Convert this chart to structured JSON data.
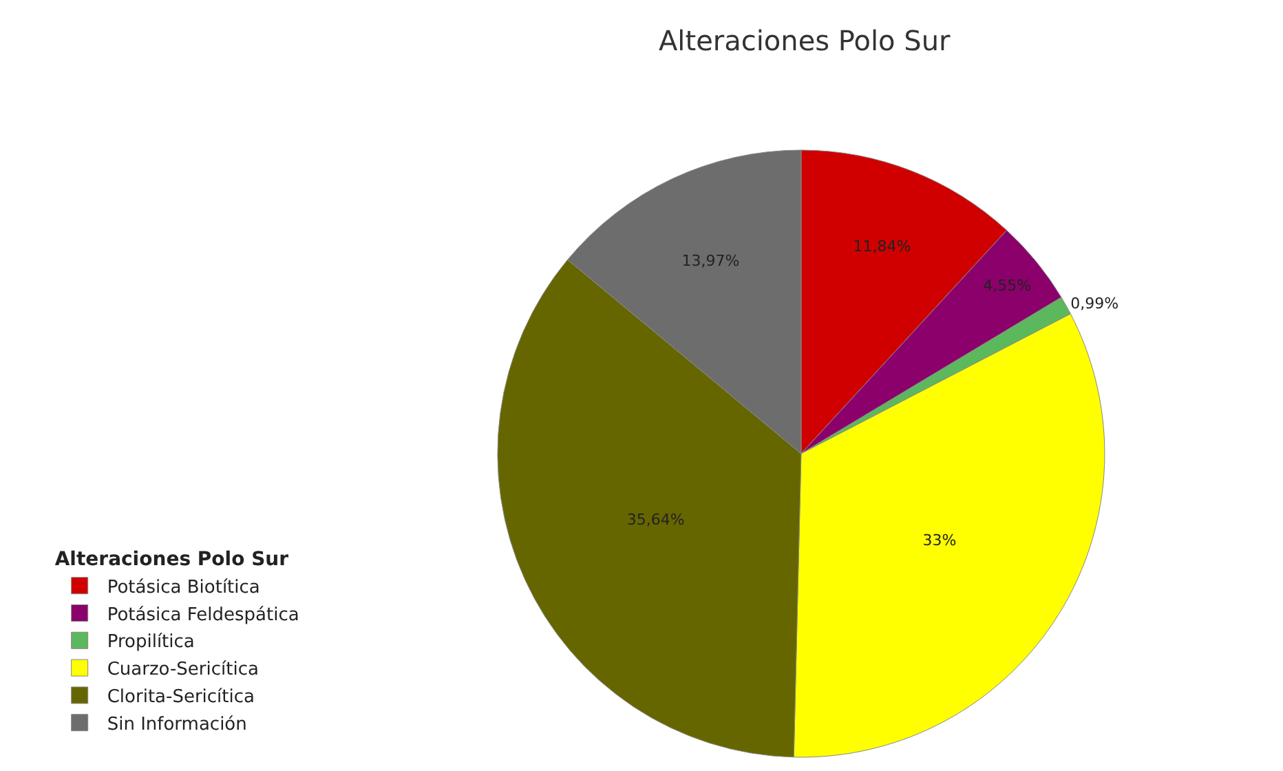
{
  "chart_data": {
    "type": "pie",
    "title": "Alteraciones Polo Sur",
    "legend_title": "Alteraciones Polo Sur",
    "legend": "bottom left",
    "categories": [
      "Potásica Biotítica",
      "Potásica Feldespática",
      "Propilítica",
      "Cuarzo-Sericítica",
      "Clorita-Sericítica",
      "Sin Información"
    ],
    "values": [
      11.84,
      4.55,
      0.99,
      33,
      35.64,
      13.97
    ],
    "value_labels": [
      "11,84%",
      "4,55%",
      "0,99%",
      "33%",
      "35,64%",
      "13,97%"
    ],
    "colors": [
      "#d00000",
      "#8b006b",
      "#5cb85c",
      "#ffff00",
      "#666600",
      "#6d6d6d"
    ]
  }
}
